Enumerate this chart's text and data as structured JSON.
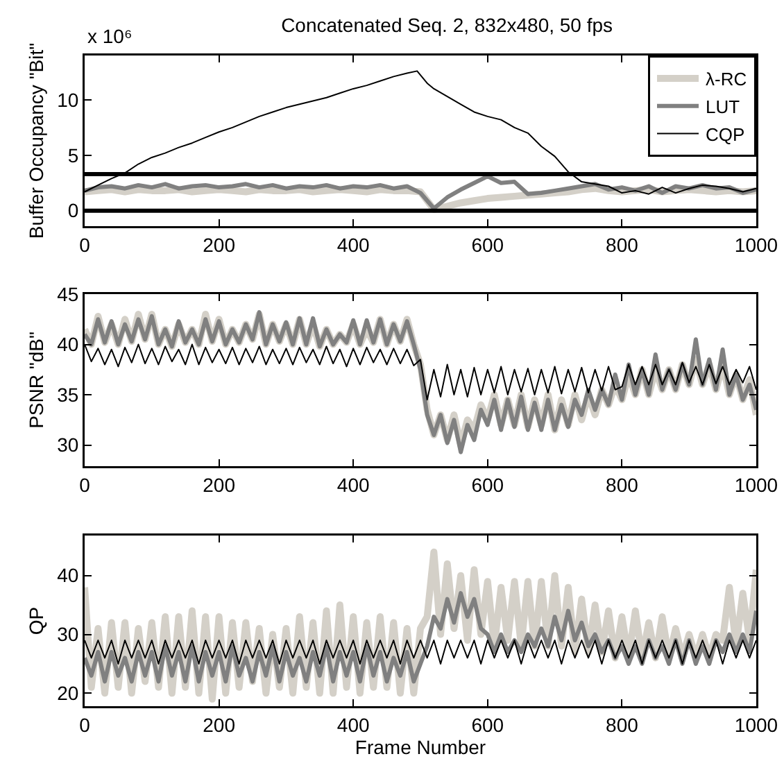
{
  "chart_data": [
    {
      "type": "line",
      "title": "Concatenated Seq. 2, 832x480, 50 fps",
      "annotations": [
        "x 10⁶"
      ],
      "ylabel": "Buffer Occupancy \"Bit\"",
      "legend": "top right",
      "x": [
        0,
        20,
        40,
        60,
        80,
        100,
        120,
        140,
        160,
        180,
        200,
        220,
        240,
        260,
        280,
        300,
        320,
        340,
        360,
        380,
        400,
        420,
        440,
        460,
        480,
        500,
        520,
        540,
        560,
        580,
        600,
        620,
        640,
        660,
        680,
        700,
        720,
        740,
        760,
        780,
        800,
        820,
        840,
        860,
        880,
        900,
        920,
        940,
        960,
        980,
        1000
      ],
      "series": [
        {
          "name": "λ-RC",
          "color": "#d4d0c8",
          "values": [
            1.7,
            1.8,
            1.9,
            1.7,
            1.9,
            1.8,
            1.8,
            1.9,
            1.7,
            1.8,
            1.9,
            1.8,
            1.7,
            1.9,
            1.8,
            1.8,
            1.9,
            1.7,
            1.8,
            1.9,
            1.8,
            1.7,
            1.9,
            1.8,
            1.8,
            1.7,
            0.1,
            0.4,
            0.7,
            0.9,
            1.1,
            1.2,
            1.3,
            1.4,
            1.5,
            1.6,
            1.7,
            1.9,
            2.0,
            1.8,
            1.7,
            1.8,
            1.9,
            1.7,
            1.8,
            1.9,
            1.8,
            1.7,
            1.8,
            1.7,
            1.8
          ]
        },
        {
          "name": "LUT",
          "color": "#808080",
          "values": [
            1.8,
            2.1,
            2.2,
            2.0,
            2.3,
            2.1,
            2.4,
            2.0,
            2.2,
            2.3,
            2.1,
            2.2,
            2.4,
            2.1,
            2.3,
            2.0,
            2.2,
            2.1,
            2.3,
            2.0,
            2.2,
            2.1,
            2.3,
            2.0,
            2.2,
            1.6,
            0.2,
            1.2,
            1.9,
            2.5,
            3.1,
            2.5,
            2.6,
            1.5,
            1.6,
            1.8,
            2.0,
            2.2,
            2.4,
            1.9,
            2.1,
            1.8,
            2.2,
            1.6,
            2.2,
            2.0,
            2.3,
            2.0,
            2.1,
            1.6,
            1.9
          ]
        },
        {
          "name": "CQP",
          "color": "#000000",
          "x": [
            0,
            20,
            40,
            60,
            80,
            100,
            120,
            140,
            160,
            180,
            200,
            220,
            240,
            260,
            280,
            300,
            320,
            340,
            360,
            380,
            400,
            420,
            440,
            460,
            480,
            495,
            510,
            520,
            540,
            560,
            580,
            600,
            620,
            640,
            660,
            680,
            700,
            720,
            740,
            760,
            780,
            800,
            820,
            840,
            860,
            880,
            900,
            920,
            940,
            960,
            980,
            1000
          ],
          "values": [
            1.7,
            2.3,
            2.9,
            3.4,
            4.2,
            4.8,
            5.2,
            5.7,
            6.1,
            6.6,
            7.1,
            7.5,
            8.0,
            8.5,
            8.9,
            9.3,
            9.6,
            9.9,
            10.2,
            10.6,
            11.0,
            11.3,
            11.7,
            12.1,
            12.4,
            12.6,
            11.5,
            11.0,
            10.3,
            9.6,
            8.9,
            8.5,
            8.2,
            7.5,
            7.0,
            5.8,
            4.9,
            3.5,
            2.6,
            2.4,
            2.2,
            1.6,
            1.8,
            1.5,
            2.1,
            1.6,
            2.0,
            2.3,
            2.2,
            2.0,
            1.7,
            2.0
          ]
        }
      ],
      "xlim": [
        0,
        1000
      ],
      "xticks": [
        0,
        200,
        400,
        600,
        800,
        1000
      ],
      "ylim": [
        -1.4,
        14
      ],
      "yticks": [
        0,
        5,
        10
      ],
      "ref_lines": [
        {
          "axis": "y",
          "value": 0,
          "color": "#000000"
        },
        {
          "axis": "y",
          "value": 3.3,
          "color": "#000000"
        }
      ]
    },
    {
      "type": "line",
      "ylabel": "PSNR \"dB\"",
      "x": [
        0,
        10,
        20,
        30,
        40,
        50,
        60,
        70,
        80,
        90,
        100,
        110,
        120,
        130,
        140,
        150,
        160,
        170,
        180,
        190,
        200,
        210,
        220,
        230,
        240,
        250,
        260,
        270,
        280,
        290,
        300,
        310,
        320,
        330,
        340,
        350,
        360,
        370,
        380,
        390,
        400,
        410,
        420,
        430,
        440,
        450,
        460,
        470,
        480,
        490,
        500,
        510,
        520,
        530,
        540,
        550,
        560,
        570,
        580,
        590,
        600,
        610,
        620,
        630,
        640,
        650,
        660,
        670,
        680,
        690,
        700,
        710,
        720,
        730,
        740,
        750,
        760,
        770,
        780,
        790,
        800,
        810,
        820,
        830,
        840,
        850,
        860,
        870,
        880,
        890,
        900,
        910,
        920,
        930,
        940,
        950,
        960,
        970,
        980,
        990,
        1000
      ],
      "series": [
        {
          "color": "#d4d0c8",
          "values": [
            41.5,
            40,
            42.8,
            40.2,
            42,
            40,
            42.5,
            40.3,
            43,
            40.5,
            43,
            40,
            41.5,
            39.8,
            42,
            40.2,
            41.5,
            40,
            43,
            40.3,
            42.5,
            40,
            41.5,
            40.2,
            42,
            40.5,
            43,
            40,
            42,
            40.3,
            42,
            40,
            42.5,
            40,
            42,
            39.8,
            41.5,
            40,
            41,
            40.2,
            42,
            40,
            41.5,
            40.2,
            42.5,
            40,
            42,
            40.3,
            42.5,
            40,
            38,
            33.5,
            31,
            33,
            30.5,
            33,
            30,
            32.5,
            31.5,
            34,
            32.5,
            35,
            32,
            34.5,
            32,
            35,
            31.8,
            34.5,
            32,
            35,
            31.5,
            34.5,
            32,
            35,
            32.5,
            35,
            33,
            35.5,
            34,
            36,
            34.5,
            37,
            35,
            37.5,
            35,
            37.5,
            35.5,
            37.5,
            35.5,
            38,
            36,
            38.5,
            36,
            38,
            35.5,
            38,
            35,
            37,
            34.5,
            36.5,
            33
          ]
        },
        {
          "color": "#808080",
          "values": [
            41,
            40,
            42.5,
            40.2,
            42.3,
            40,
            42,
            40.3,
            42.5,
            40.5,
            42.8,
            40,
            41.5,
            39.8,
            42.3,
            40.2,
            41.5,
            40,
            42.5,
            40.3,
            42.3,
            40,
            41.5,
            40.2,
            42,
            40.5,
            43.2,
            40,
            42,
            40.3,
            42.2,
            40,
            42.6,
            40,
            42.6,
            39.8,
            41.5,
            40,
            41,
            40.2,
            42.4,
            40,
            42.4,
            40.2,
            42.5,
            40,
            42,
            40.3,
            42.3,
            40,
            37.5,
            33,
            31,
            33,
            30.2,
            32.5,
            29.3,
            32,
            30.5,
            33.5,
            32,
            34.5,
            31.5,
            34.5,
            31.8,
            34.8,
            31.5,
            34.2,
            31.5,
            34.5,
            31.5,
            34,
            31.8,
            34.5,
            33,
            35.5,
            33.5,
            35.5,
            34,
            37,
            34.5,
            38,
            35,
            37.5,
            35,
            39,
            35.5,
            37.5,
            35.5,
            38,
            36,
            40.5,
            36,
            38.5,
            35.5,
            39.5,
            35,
            37,
            34.5,
            36,
            33.5
          ]
        },
        {
          "color": "#000000",
          "values": [
            40,
            38.3,
            39.6,
            38,
            39.5,
            37.8,
            39.7,
            38.2,
            40,
            38.1,
            39.6,
            38,
            39.8,
            38.3,
            39.5,
            38,
            40,
            38,
            39.7,
            38.2,
            39.5,
            38.1,
            39.7,
            38,
            39.6,
            38.2,
            39.8,
            38,
            39.5,
            38.1,
            39.6,
            38,
            39.7,
            38.2,
            39.5,
            38,
            39.8,
            38.1,
            39.5,
            37.8,
            39.6,
            38,
            39.7,
            38.2,
            39.5,
            38,
            39.6,
            38.1,
            39.5,
            37.9,
            38.5,
            34.5,
            37.5,
            34.8,
            38,
            35,
            37.5,
            34.8,
            37.7,
            35,
            37.5,
            35.2,
            37.8,
            35,
            37.5,
            35.3,
            37.6,
            35,
            37.5,
            35.2,
            37.8,
            35.1,
            37.5,
            35.3,
            37.7,
            35.2,
            37.5,
            35.4,
            37.8,
            35.5,
            35.8,
            38,
            36,
            37.8,
            36,
            38,
            36,
            37.5,
            36,
            38.2,
            36.2,
            37.8,
            36,
            38,
            36.1,
            37.8,
            36,
            37.5,
            36.2,
            37.8,
            35.5
          ]
        }
      ],
      "xlim": [
        0,
        1000
      ],
      "xticks": [
        0,
        200,
        400,
        600,
        800,
        1000
      ],
      "ylim": [
        27.9,
        45
      ],
      "yticks": [
        30,
        35,
        40,
        45
      ]
    },
    {
      "type": "line",
      "ylabel": "QP",
      "xlabel": "Frame Number",
      "x": [
        0,
        10,
        20,
        30,
        40,
        50,
        60,
        70,
        80,
        90,
        100,
        110,
        120,
        130,
        140,
        150,
        160,
        170,
        180,
        190,
        200,
        210,
        220,
        230,
        240,
        250,
        260,
        270,
        280,
        290,
        300,
        310,
        320,
        330,
        340,
        350,
        360,
        370,
        380,
        390,
        400,
        410,
        420,
        430,
        440,
        450,
        460,
        470,
        480,
        490,
        500,
        510,
        520,
        530,
        540,
        550,
        560,
        570,
        580,
        590,
        600,
        610,
        620,
        630,
        640,
        650,
        660,
        670,
        680,
        690,
        700,
        710,
        720,
        730,
        740,
        750,
        760,
        770,
        780,
        790,
        800,
        810,
        820,
        830,
        840,
        850,
        860,
        870,
        880,
        890,
        900,
        910,
        920,
        930,
        940,
        950,
        960,
        970,
        980,
        990,
        1000
      ],
      "series": [
        {
          "color": "#d4d0c8",
          "values": [
            38,
            21,
            31,
            20,
            32,
            21,
            32,
            20,
            31,
            22,
            32,
            21,
            33,
            20,
            33,
            21,
            34,
            20,
            33,
            19,
            33,
            20,
            32,
            21,
            32,
            22,
            31,
            20,
            30,
            21,
            31,
            20,
            33,
            21,
            32,
            20,
            34,
            20,
            35,
            21,
            33,
            20,
            32,
            21,
            33,
            21,
            32,
            20,
            31,
            20,
            31,
            33,
            44,
            30,
            42,
            31,
            40,
            29,
            41,
            30,
            39,
            28,
            38,
            29,
            39,
            28,
            39,
            28,
            39,
            28,
            40,
            28,
            38,
            27,
            36,
            27,
            35,
            27,
            34,
            26,
            33,
            26,
            34,
            26,
            32,
            26,
            33,
            26,
            31,
            26,
            30,
            26,
            30,
            26,
            30,
            29,
            38,
            28,
            37,
            29,
            41
          ]
        },
        {
          "color": "#808080",
          "values": [
            26,
            23,
            27,
            22,
            27,
            23,
            26,
            22,
            27,
            23,
            27,
            22,
            28,
            23,
            27,
            22,
            28,
            22,
            27,
            23,
            27,
            22,
            28,
            23,
            26,
            22,
            27,
            23,
            28,
            22,
            27,
            23,
            26,
            22,
            27,
            23,
            28,
            22,
            27,
            23,
            27,
            22,
            28,
            23,
            27,
            22,
            26,
            23,
            27,
            22,
            25,
            28,
            33,
            31,
            36,
            32,
            37,
            33,
            36,
            31,
            30,
            27,
            30,
            27,
            29,
            27,
            30,
            28,
            31,
            28,
            33,
            29,
            34,
            29,
            32,
            28,
            30,
            27,
            29,
            26,
            28,
            25,
            28,
            25,
            29,
            26,
            28,
            25,
            29,
            25,
            29,
            25,
            28,
            25,
            29,
            27,
            30,
            27,
            30,
            27,
            34
          ]
        },
        {
          "color": "#000000",
          "values": [
            29,
            26,
            29,
            26,
            29,
            25,
            29,
            26,
            29,
            26,
            29,
            25,
            29,
            26,
            29,
            26,
            29,
            25,
            29,
            26,
            29,
            26,
            29,
            25,
            29,
            26,
            29,
            26,
            29,
            25,
            29,
            26,
            29,
            26,
            29,
            25,
            29,
            26,
            29,
            26,
            29,
            25,
            29,
            26,
            29,
            26,
            29,
            25,
            29,
            26,
            29,
            26,
            29,
            25,
            29,
            26,
            29,
            26,
            29,
            25,
            29,
            26,
            29,
            26,
            29,
            25,
            29,
            26,
            29,
            26,
            29,
            25,
            29,
            26,
            29,
            26,
            29,
            25,
            29,
            26,
            29,
            26,
            29,
            25,
            29,
            26,
            29,
            26,
            29,
            25,
            29,
            26,
            29,
            26,
            29,
            25,
            29,
            26,
            29,
            26,
            29
          ]
        }
      ],
      "xlim": [
        0,
        1000
      ],
      "xticks": [
        0,
        200,
        400,
        600,
        800,
        1000
      ],
      "ylim": [
        17.8,
        46.8
      ],
      "yticks": [
        20,
        30,
        40
      ]
    }
  ]
}
